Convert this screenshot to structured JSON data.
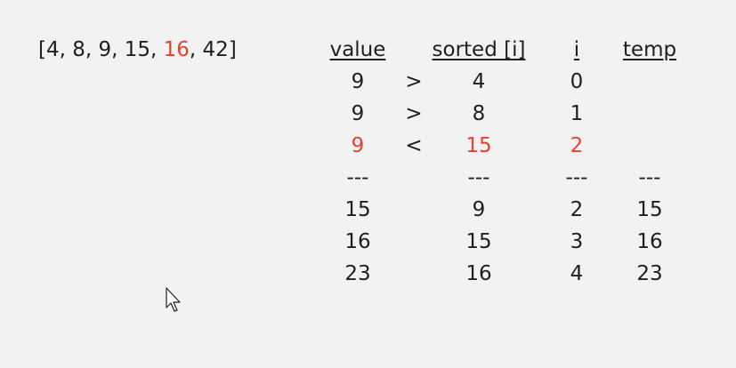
{
  "array": {
    "open": "[",
    "before": "4, 8, 9, 15, ",
    "highlight": "16",
    "after": ", 42",
    "close": "]"
  },
  "table": {
    "headers": {
      "value": "value",
      "sorted": "sorted [i]",
      "i": "i",
      "temp": "temp"
    },
    "rows": [
      {
        "value": "9",
        "op": ">",
        "sorted": "4",
        "i": "0",
        "temp": ""
      },
      {
        "value": "9",
        "op": ">",
        "sorted": "8",
        "i": "1",
        "temp": ""
      },
      {
        "value": "9",
        "op": "<",
        "sorted": "15",
        "i": "2",
        "temp": ""
      },
      {
        "value": "---",
        "op": "",
        "sorted": "---",
        "i": "---",
        "temp": "---"
      },
      {
        "value": "15",
        "op": "",
        "sorted": "9",
        "i": "2",
        "temp": "15"
      },
      {
        "value": "16",
        "op": "",
        "sorted": "15",
        "i": "3",
        "temp": "16"
      },
      {
        "value": "23",
        "op": "",
        "sorted": "16",
        "i": "4",
        "temp": "23"
      }
    ]
  },
  "colors": {
    "highlight": "#e8412c",
    "text": "#1f1f1f",
    "background": "#f2f2f2"
  },
  "icons": {
    "cursor": "mouse-pointer-icon"
  }
}
